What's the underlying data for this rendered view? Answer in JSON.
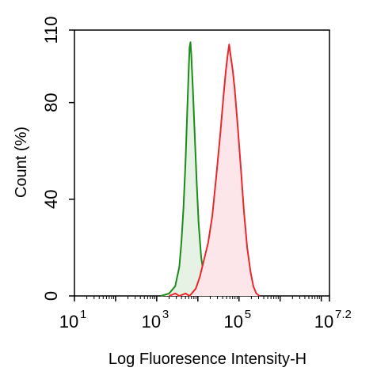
{
  "chart_data": {
    "type": "area",
    "title": "",
    "xlabel": "Log Fluoresence Intensity-H",
    "ylabel": "Count  (%)",
    "x_scale": "log10",
    "xlim": [
      1,
      7.2
    ],
    "ylim": [
      0,
      110
    ],
    "x_ticks": [
      {
        "base": "10",
        "exp": "1",
        "value": 1
      },
      {
        "base": "10",
        "exp": "3",
        "value": 3
      },
      {
        "base": "10",
        "exp": "5",
        "value": 5
      },
      {
        "base": "10",
        "exp": "7.2",
        "value": 7.2
      }
    ],
    "y_ticks": [
      "0",
      "40",
      "80",
      "110"
    ],
    "y_tick_values": [
      0,
      40,
      80,
      110
    ],
    "grid": false,
    "legend": "none",
    "series": [
      {
        "color": "#1e8a1e",
        "fill": "#e6f2e3",
        "points": [
          [
            3.1,
            0
          ],
          [
            3.3,
            1
          ],
          [
            3.45,
            4
          ],
          [
            3.55,
            12
          ],
          [
            3.6,
            22
          ],
          [
            3.65,
            36
          ],
          [
            3.7,
            55
          ],
          [
            3.75,
            80
          ],
          [
            3.78,
            95
          ],
          [
            3.8,
            103
          ],
          [
            3.82,
            105
          ],
          [
            3.84,
            100
          ],
          [
            3.88,
            85
          ],
          [
            3.92,
            68
          ],
          [
            3.97,
            48
          ],
          [
            4.02,
            30
          ],
          [
            4.08,
            16
          ],
          [
            4.15,
            8
          ],
          [
            4.22,
            3
          ],
          [
            4.3,
            1
          ],
          [
            4.4,
            0
          ]
        ]
      },
      {
        "color": "#e8282d",
        "fill": "#fde6ea",
        "points": [
          [
            3.3,
            0
          ],
          [
            3.45,
            1
          ],
          [
            3.55,
            0
          ],
          [
            3.7,
            1
          ],
          [
            3.8,
            0
          ],
          [
            3.95,
            3
          ],
          [
            4.05,
            8
          ],
          [
            4.15,
            15
          ],
          [
            4.25,
            22
          ],
          [
            4.35,
            33
          ],
          [
            4.45,
            50
          ],
          [
            4.55,
            68
          ],
          [
            4.62,
            82
          ],
          [
            4.68,
            93
          ],
          [
            4.72,
            99
          ],
          [
            4.76,
            104
          ],
          [
            4.8,
            99
          ],
          [
            4.85,
            93
          ],
          [
            4.9,
            85
          ],
          [
            4.97,
            70
          ],
          [
            5.05,
            52
          ],
          [
            5.12,
            35
          ],
          [
            5.2,
            20
          ],
          [
            5.28,
            10
          ],
          [
            5.35,
            4
          ],
          [
            5.42,
            1
          ],
          [
            5.5,
            0
          ]
        ]
      }
    ]
  }
}
